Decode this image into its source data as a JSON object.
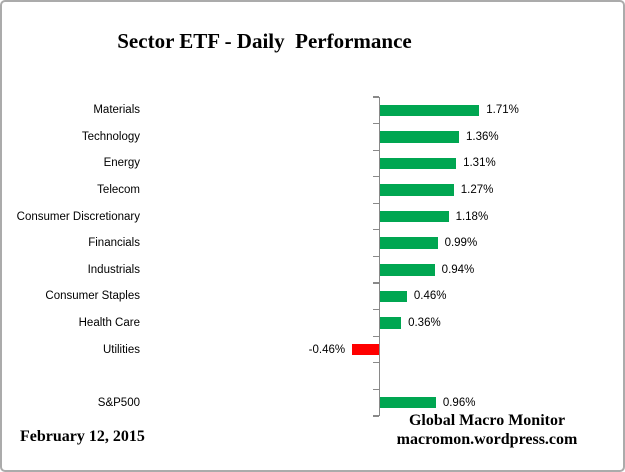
{
  "title": "Sector ETF - Daily  Performance",
  "footer": {
    "date": "February 12, 2015",
    "brand_line1": "Global Macro Monitor",
    "brand_line2": "macromon.wordpress.com"
  },
  "chart_data": {
    "type": "bar",
    "orientation": "horizontal",
    "title": "Sector ETF - Daily  Performance",
    "categories": [
      "Materials",
      "Technology",
      "Energy",
      "Telecom",
      "Consumer Discretionary",
      "Financials",
      "Industrials",
      "Consumer Staples",
      "Health Care",
      "Utilities",
      "",
      "S&P500"
    ],
    "values": [
      1.71,
      1.36,
      1.31,
      1.27,
      1.18,
      0.99,
      0.94,
      0.46,
      0.36,
      -0.46,
      null,
      0.96
    ],
    "labels": [
      "1.71%",
      "1.36%",
      "1.31%",
      "1.27%",
      "1.18%",
      "0.99%",
      "0.94%",
      "0.46%",
      "0.36%",
      "-0.46%",
      "",
      "0.96%"
    ],
    "xlabel": "",
    "ylabel": "",
    "grid": false,
    "legend": "none",
    "value_axis_visible": false,
    "positive_color": "#00A651",
    "negative_color": "#FF0000",
    "axis_color": "#898989",
    "text_color": "#000000"
  }
}
